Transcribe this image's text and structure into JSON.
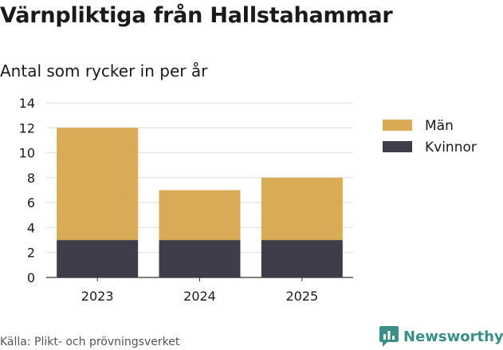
{
  "header": {
    "title": "Värnpliktiga från Hallstahammar",
    "subtitle": "Antal som rycker in per år"
  },
  "footer": {
    "source": "Källa: Plikt- och prövningsverket",
    "brand": "Newsworthy"
  },
  "colors": {
    "man": "#d9ab57",
    "kvinnor": "#3f3d4a",
    "grid": "#dddddd",
    "brand": "#3a8f88"
  },
  "chart_data": {
    "type": "bar",
    "stacked": true,
    "title": "Värnpliktiga från Hallstahammar",
    "subtitle": "Antal som rycker in per år",
    "categories": [
      "2023",
      "2024",
      "2025"
    ],
    "series": [
      {
        "name": "Kvinnor",
        "values": [
          3,
          3,
          3
        ],
        "color": "#3f3d4a"
      },
      {
        "name": "Män",
        "values": [
          9,
          4,
          5
        ],
        "color": "#d9ab57"
      }
    ],
    "legend_order": [
      "Män",
      "Kvinnor"
    ],
    "legend_position": "right",
    "ylim": [
      0,
      14
    ],
    "yticks": [
      0,
      2,
      4,
      6,
      8,
      10,
      12,
      14
    ],
    "grid": true,
    "xlabel": "",
    "ylabel": ""
  }
}
